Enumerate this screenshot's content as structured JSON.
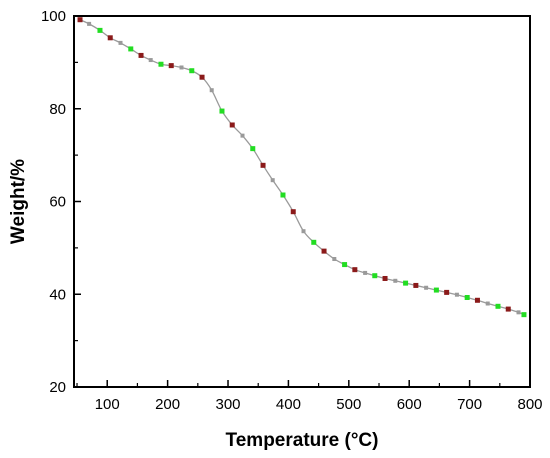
{
  "chart_data": {
    "type": "line",
    "title": "",
    "xlabel": "Temperature (°C)",
    "ylabel": "Weight/%",
    "xlim": [
      45,
      800
    ],
    "ylim": [
      20,
      100
    ],
    "xticks": [
      100,
      200,
      300,
      400,
      500,
      600,
      700,
      800
    ],
    "yticks": [
      20,
      40,
      60,
      80,
      100
    ],
    "grid": false,
    "legend": "none",
    "colors": {
      "line": "#9a9a9a",
      "marker_red": "#8b1a1a",
      "marker_green": "#22dd22",
      "marker_gray": "#9a9a9a"
    },
    "series": [
      {
        "x": [
          55,
          70,
          88,
          105,
          122,
          139,
          156,
          172,
          189,
          206,
          223,
          240,
          257,
          273,
          290,
          307,
          324,
          341,
          358,
          374,
          391,
          408,
          425,
          442,
          459,
          476,
          493,
          510,
          527,
          543,
          560,
          577,
          594,
          611,
          628,
          645,
          662,
          679,
          696,
          713,
          730,
          747,
          764,
          781,
          790
        ],
        "y": [
          99.2,
          98.3,
          96.9,
          95.3,
          94.2,
          92.9,
          91.5,
          90.5,
          89.6,
          89.3,
          88.9,
          88.2,
          86.8,
          84.0,
          79.5,
          76.5,
          74.2,
          71.4,
          67.8,
          64.6,
          61.4,
          57.8,
          53.6,
          51.2,
          49.3,
          47.6,
          46.4,
          45.3,
          44.6,
          44.0,
          43.4,
          42.9,
          42.4,
          41.9,
          41.4,
          40.9,
          40.4,
          39.9,
          39.3,
          38.7,
          38.0,
          37.4,
          36.8,
          36.1,
          35.6
        ],
        "marker_colors": [
          "red",
          "gray",
          "green",
          "red",
          "gray",
          "green",
          "red",
          "gray",
          "green",
          "red",
          "gray",
          "green",
          "red",
          "gray",
          "green",
          "red",
          "gray",
          "green",
          "red",
          "gray",
          "green",
          "red",
          "gray",
          "green",
          "red",
          "gray",
          "green",
          "red",
          "gray",
          "green",
          "red",
          "gray",
          "green",
          "red",
          "gray",
          "green",
          "red",
          "gray",
          "green",
          "red",
          "gray",
          "green",
          "red",
          "gray",
          "green"
        ]
      }
    ]
  }
}
